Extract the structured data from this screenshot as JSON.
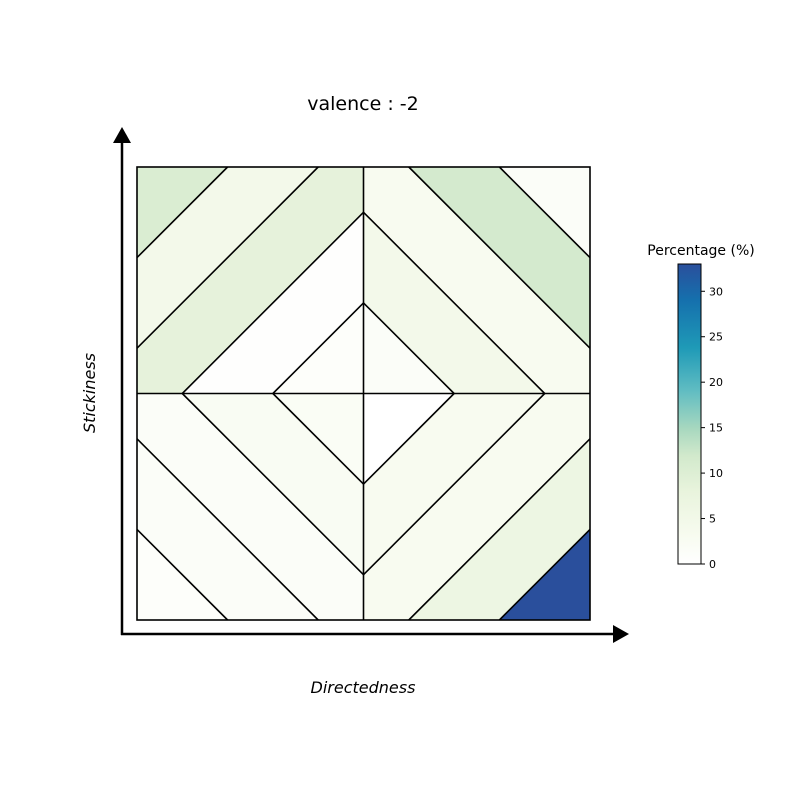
{
  "chart_data": {
    "type": "heatmap",
    "title": "valence :  -2",
    "xlabel": "Directedness",
    "ylabel": "Stickiness",
    "colorbar": {
      "label": "Percentage (%)",
      "range": [
        0,
        33
      ],
      "ticks": [
        "0",
        "5",
        "10",
        "15",
        "20",
        "25",
        "30"
      ],
      "colors": [
        "#ffffff",
        "#f7fbef",
        "#e9f4dd",
        "#d2e9cc",
        "#a8d8bf",
        "#5fbcc2",
        "#1f9ab7",
        "#1570ad",
        "#2a4f9c"
      ]
    },
    "regions": [
      {
        "id": "top-left-corner",
        "value": 10.5
      },
      {
        "id": "upper-left-band-outer",
        "value": 4.5
      },
      {
        "id": "upper-left-band-inner",
        "value": 8.5
      },
      {
        "id": "upper-left-center-triangle",
        "value": 0.5
      },
      {
        "id": "center-upper-left",
        "value": 1.0
      },
      {
        "id": "center-upper-right",
        "value": 1.5
      },
      {
        "id": "upper-right-center-triangle",
        "value": 4.5
      },
      {
        "id": "upper-right-band-inner",
        "value": 3.0
      },
      {
        "id": "upper-right-band-outer",
        "value": 1.5
      },
      {
        "id": "top-right-corner",
        "value": 11.5
      },
      {
        "id": "lower-left-center-triangle",
        "value": 2.5
      },
      {
        "id": "lower-left-band-inner",
        "value": 1.5
      },
      {
        "id": "lower-left-band-outer",
        "value": 1.5
      },
      {
        "id": "bottom-left-corner",
        "value": 1.0
      },
      {
        "id": "center-lower-left",
        "value": 2.0
      },
      {
        "id": "center-lower-right",
        "value": 0.0
      },
      {
        "id": "lower-right-center-triangle",
        "value": 3.0
      },
      {
        "id": "lower-right-band-inner",
        "value": 3.0
      },
      {
        "id": "lower-right-band-outer",
        "value": 6.5
      },
      {
        "id": "bottom-right-corner",
        "value": 33.0
      }
    ]
  }
}
